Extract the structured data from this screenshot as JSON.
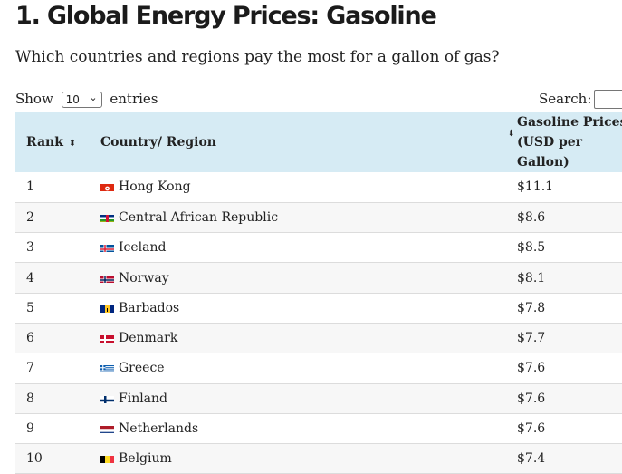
{
  "title": "1. Global Energy Prices: Gasoline",
  "subtitle": "Which countries and regions pay the most for a gallon of gas?",
  "controls": {
    "show_label": "Show",
    "entries_value": "10",
    "entries_label": "entries",
    "search_label": "Search:"
  },
  "table": {
    "headers": {
      "rank": "Rank",
      "country": "Country/ Region",
      "price_line1": "Gasoline Prices",
      "price_line2": "(USD per Gallon)"
    },
    "rows": [
      {
        "rank": "1",
        "country": "Hong Kong",
        "price": "$11.1",
        "flag": "hong-kong-flag-icon"
      },
      {
        "rank": "2",
        "country": "Central African Republic",
        "price": "$8.6",
        "flag": "central-african-republic-flag-icon"
      },
      {
        "rank": "3",
        "country": "Iceland",
        "price": "$8.5",
        "flag": "iceland-flag-icon"
      },
      {
        "rank": "4",
        "country": "Norway",
        "price": "$8.1",
        "flag": "norway-flag-icon"
      },
      {
        "rank": "5",
        "country": "Barbados",
        "price": "$7.8",
        "flag": "barbados-flag-icon"
      },
      {
        "rank": "6",
        "country": "Denmark",
        "price": "$7.7",
        "flag": "denmark-flag-icon"
      },
      {
        "rank": "7",
        "country": "Greece",
        "price": "$7.6",
        "flag": "greece-flag-icon"
      },
      {
        "rank": "8",
        "country": "Finland",
        "price": "$7.6",
        "flag": "finland-flag-icon"
      },
      {
        "rank": "9",
        "country": "Netherlands",
        "price": "$7.6",
        "flag": "netherlands-flag-icon"
      },
      {
        "rank": "10",
        "country": "Belgium",
        "price": "$7.4",
        "flag": "belgium-flag-icon"
      }
    ]
  },
  "colors": {
    "header_bg": "#d6ebf4",
    "row_alt_bg": "#f7f7f7"
  }
}
